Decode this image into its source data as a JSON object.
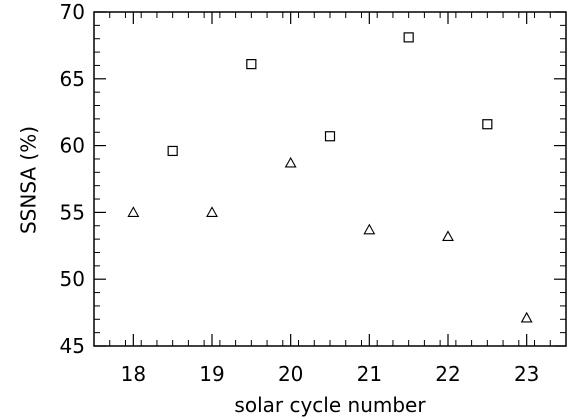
{
  "chart_data": {
    "type": "scatter",
    "title": "",
    "xlabel": "solar cycle number",
    "ylabel": "SSNSA (%)",
    "xlim": [
      17.5,
      23.5
    ],
    "ylim": [
      45,
      70
    ],
    "xticks": [
      18,
      19,
      20,
      21,
      22,
      23
    ],
    "yticks": [
      45,
      50,
      55,
      60,
      65,
      70
    ],
    "x_minor_step": 0.2,
    "y_minor_step": 1,
    "grid": false,
    "series": [
      {
        "marker": "square",
        "x": [
          18.5,
          19.5,
          20.5,
          21.5,
          22.5
        ],
        "y": [
          59.6,
          66.1,
          60.7,
          68.1,
          61.6
        ]
      },
      {
        "marker": "triangle",
        "x": [
          18,
          19,
          20,
          21,
          22,
          23
        ],
        "y": [
          55.0,
          55.0,
          58.7,
          53.7,
          53.2,
          47.1
        ]
      }
    ]
  }
}
